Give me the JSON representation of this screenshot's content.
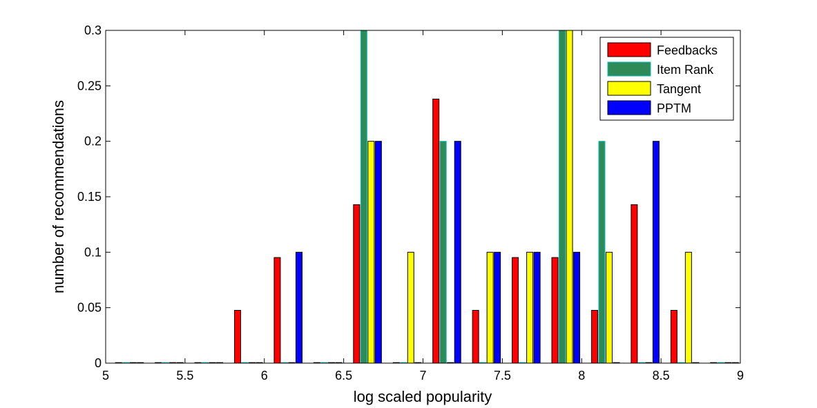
{
  "chart_data": {
    "type": "bar",
    "xlabel": "log scaled popularity",
    "ylabel": "number of recommendations",
    "xlim": [
      5,
      9
    ],
    "ylim": [
      0,
      0.3
    ],
    "xticks": [
      5,
      5.5,
      6,
      6.5,
      7,
      7.5,
      8,
      8.5,
      9
    ],
    "xtick_labels": [
      "5",
      "5.5",
      "6",
      "6.5",
      "7",
      "7.5",
      "8",
      "8.5",
      "9"
    ],
    "yticks": [
      0,
      0.05,
      0.1,
      0.15,
      0.2,
      0.25,
      0.3
    ],
    "ytick_labels": [
      "0",
      "0.05",
      "0.1",
      "0.15",
      "0.2",
      "0.25",
      "0.3"
    ],
    "grid": false,
    "legend_position": "top-right",
    "bin_centers": [
      5.15,
      5.4,
      5.65,
      5.9,
      6.15,
      6.4,
      6.65,
      6.9,
      7.15,
      7.4,
      7.65,
      7.9,
      8.15,
      8.4,
      8.65,
      8.9
    ],
    "series": [
      {
        "name": "Feedbacks",
        "color": "#ff0000",
        "values": [
          0,
          0,
          0,
          0.0476,
          0.0952,
          0,
          0.1429,
          0,
          0.2381,
          0.0476,
          0.0952,
          0.0952,
          0.0476,
          0.1429,
          0.0476,
          0
        ]
      },
      {
        "name": "Item Rank",
        "color": "#2e8b57",
        "edge": "#00c0c0",
        "values": [
          0,
          0,
          0,
          0,
          0,
          0,
          0.3,
          0,
          0.2,
          0,
          0,
          0.3,
          0.2,
          0,
          0,
          0
        ]
      },
      {
        "name": "Tangent",
        "color": "#ffff00",
        "values": [
          0,
          0,
          0,
          0,
          0,
          0,
          0.2,
          0.1,
          0,
          0.1,
          0.1,
          0.3,
          0.1,
          0,
          0.1,
          0
        ]
      },
      {
        "name": "PPTM",
        "color": "#0000ff",
        "values": [
          0,
          0,
          0,
          0,
          0.1,
          0,
          0.2,
          0,
          0.2,
          0.1,
          0.1,
          0.1,
          0,
          0.2,
          0,
          0
        ]
      }
    ]
  }
}
